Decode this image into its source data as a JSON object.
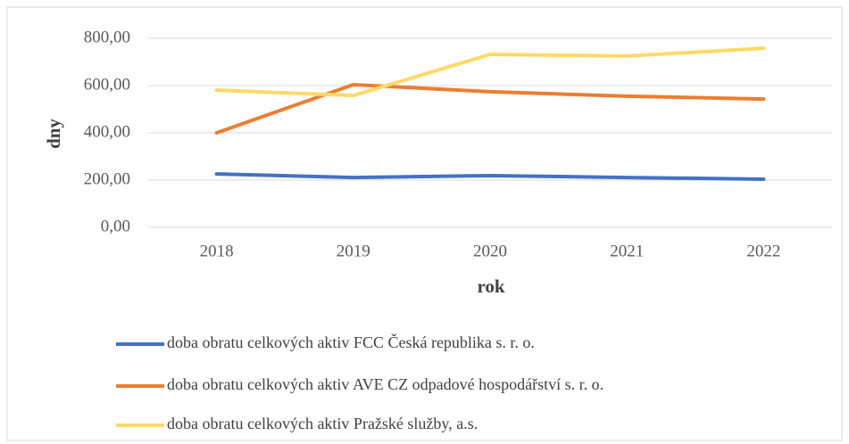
{
  "chart_data": {
    "type": "line",
    "x_label": "rok",
    "y_label": "dny",
    "categories": [
      "2018",
      "2019",
      "2020",
      "2021",
      "2022"
    ],
    "series": [
      {
        "name": "doba obratu celkových aktiv FCC Česká republika s. r. o.",
        "color": "#4472c4",
        "values": [
          226,
          211,
          219,
          211,
          204
        ]
      },
      {
        "name": "doba obratu celkových aktiv AVE CZ odpadové hospodářství s. r. o.",
        "color": "#ed7d31",
        "values": [
          400,
          604,
          574,
          555,
          543
        ]
      },
      {
        "name": "doba obratu celkových aktiv Pražské služby, a.s.",
        "color": "#ffd966",
        "values": [
          581,
          558,
          732,
          725,
          758
        ]
      }
    ],
    "ylim": [
      0,
      800
    ],
    "yticks": [
      {
        "value": 0,
        "label": "0,00"
      },
      {
        "value": 200,
        "label": "200,00"
      },
      {
        "value": 400,
        "label": "400,00"
      },
      {
        "value": 600,
        "label": "600,00"
      },
      {
        "value": 800,
        "label": "800,00"
      }
    ],
    "grid": true,
    "legend": "bottom"
  }
}
